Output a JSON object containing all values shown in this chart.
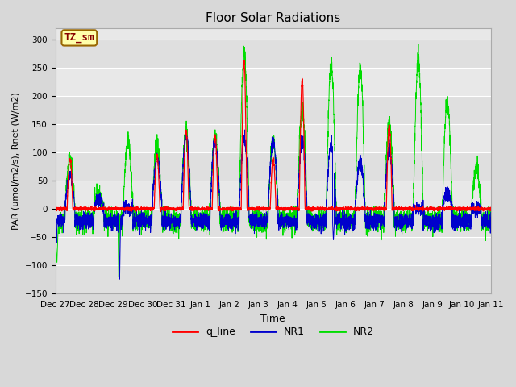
{
  "title": "Floor Solar Radiations",
  "xlabel": "Time",
  "ylabel": "PAR (umol/m2/s), Rnet (W/m2)",
  "ylim": [
    -150,
    320
  ],
  "yticks": [
    -150,
    -100,
    -50,
    0,
    50,
    100,
    150,
    200,
    250,
    300
  ],
  "background_color": "#d8d8d8",
  "plot_bg_color": "#e8e8e8",
  "legend_labels": [
    "q_line",
    "NR1",
    "NR2"
  ],
  "legend_colors": [
    "#ff0000",
    "#0000cc",
    "#00dd00"
  ],
  "annotation_text": "TZ_sm",
  "annotation_bg": "#ffffaa",
  "annotation_border": "#996600",
  "annotation_text_color": "#880000",
  "grid_color": "#ffffff",
  "seed": 12345,
  "pts_per_day": 288,
  "n_days": 15,
  "tick_labels": [
    "Dec 27",
    "Dec 28",
    "Dec 29",
    "Dec 30",
    "Dec 31",
    "Jan 1",
    "Jan 2",
    "Jan 3",
    "Jan 4",
    "Jan 5",
    "Jan 6",
    "Jan 7",
    "Jan 8",
    "Jan 9",
    "Jan 10",
    "Jan 11"
  ]
}
